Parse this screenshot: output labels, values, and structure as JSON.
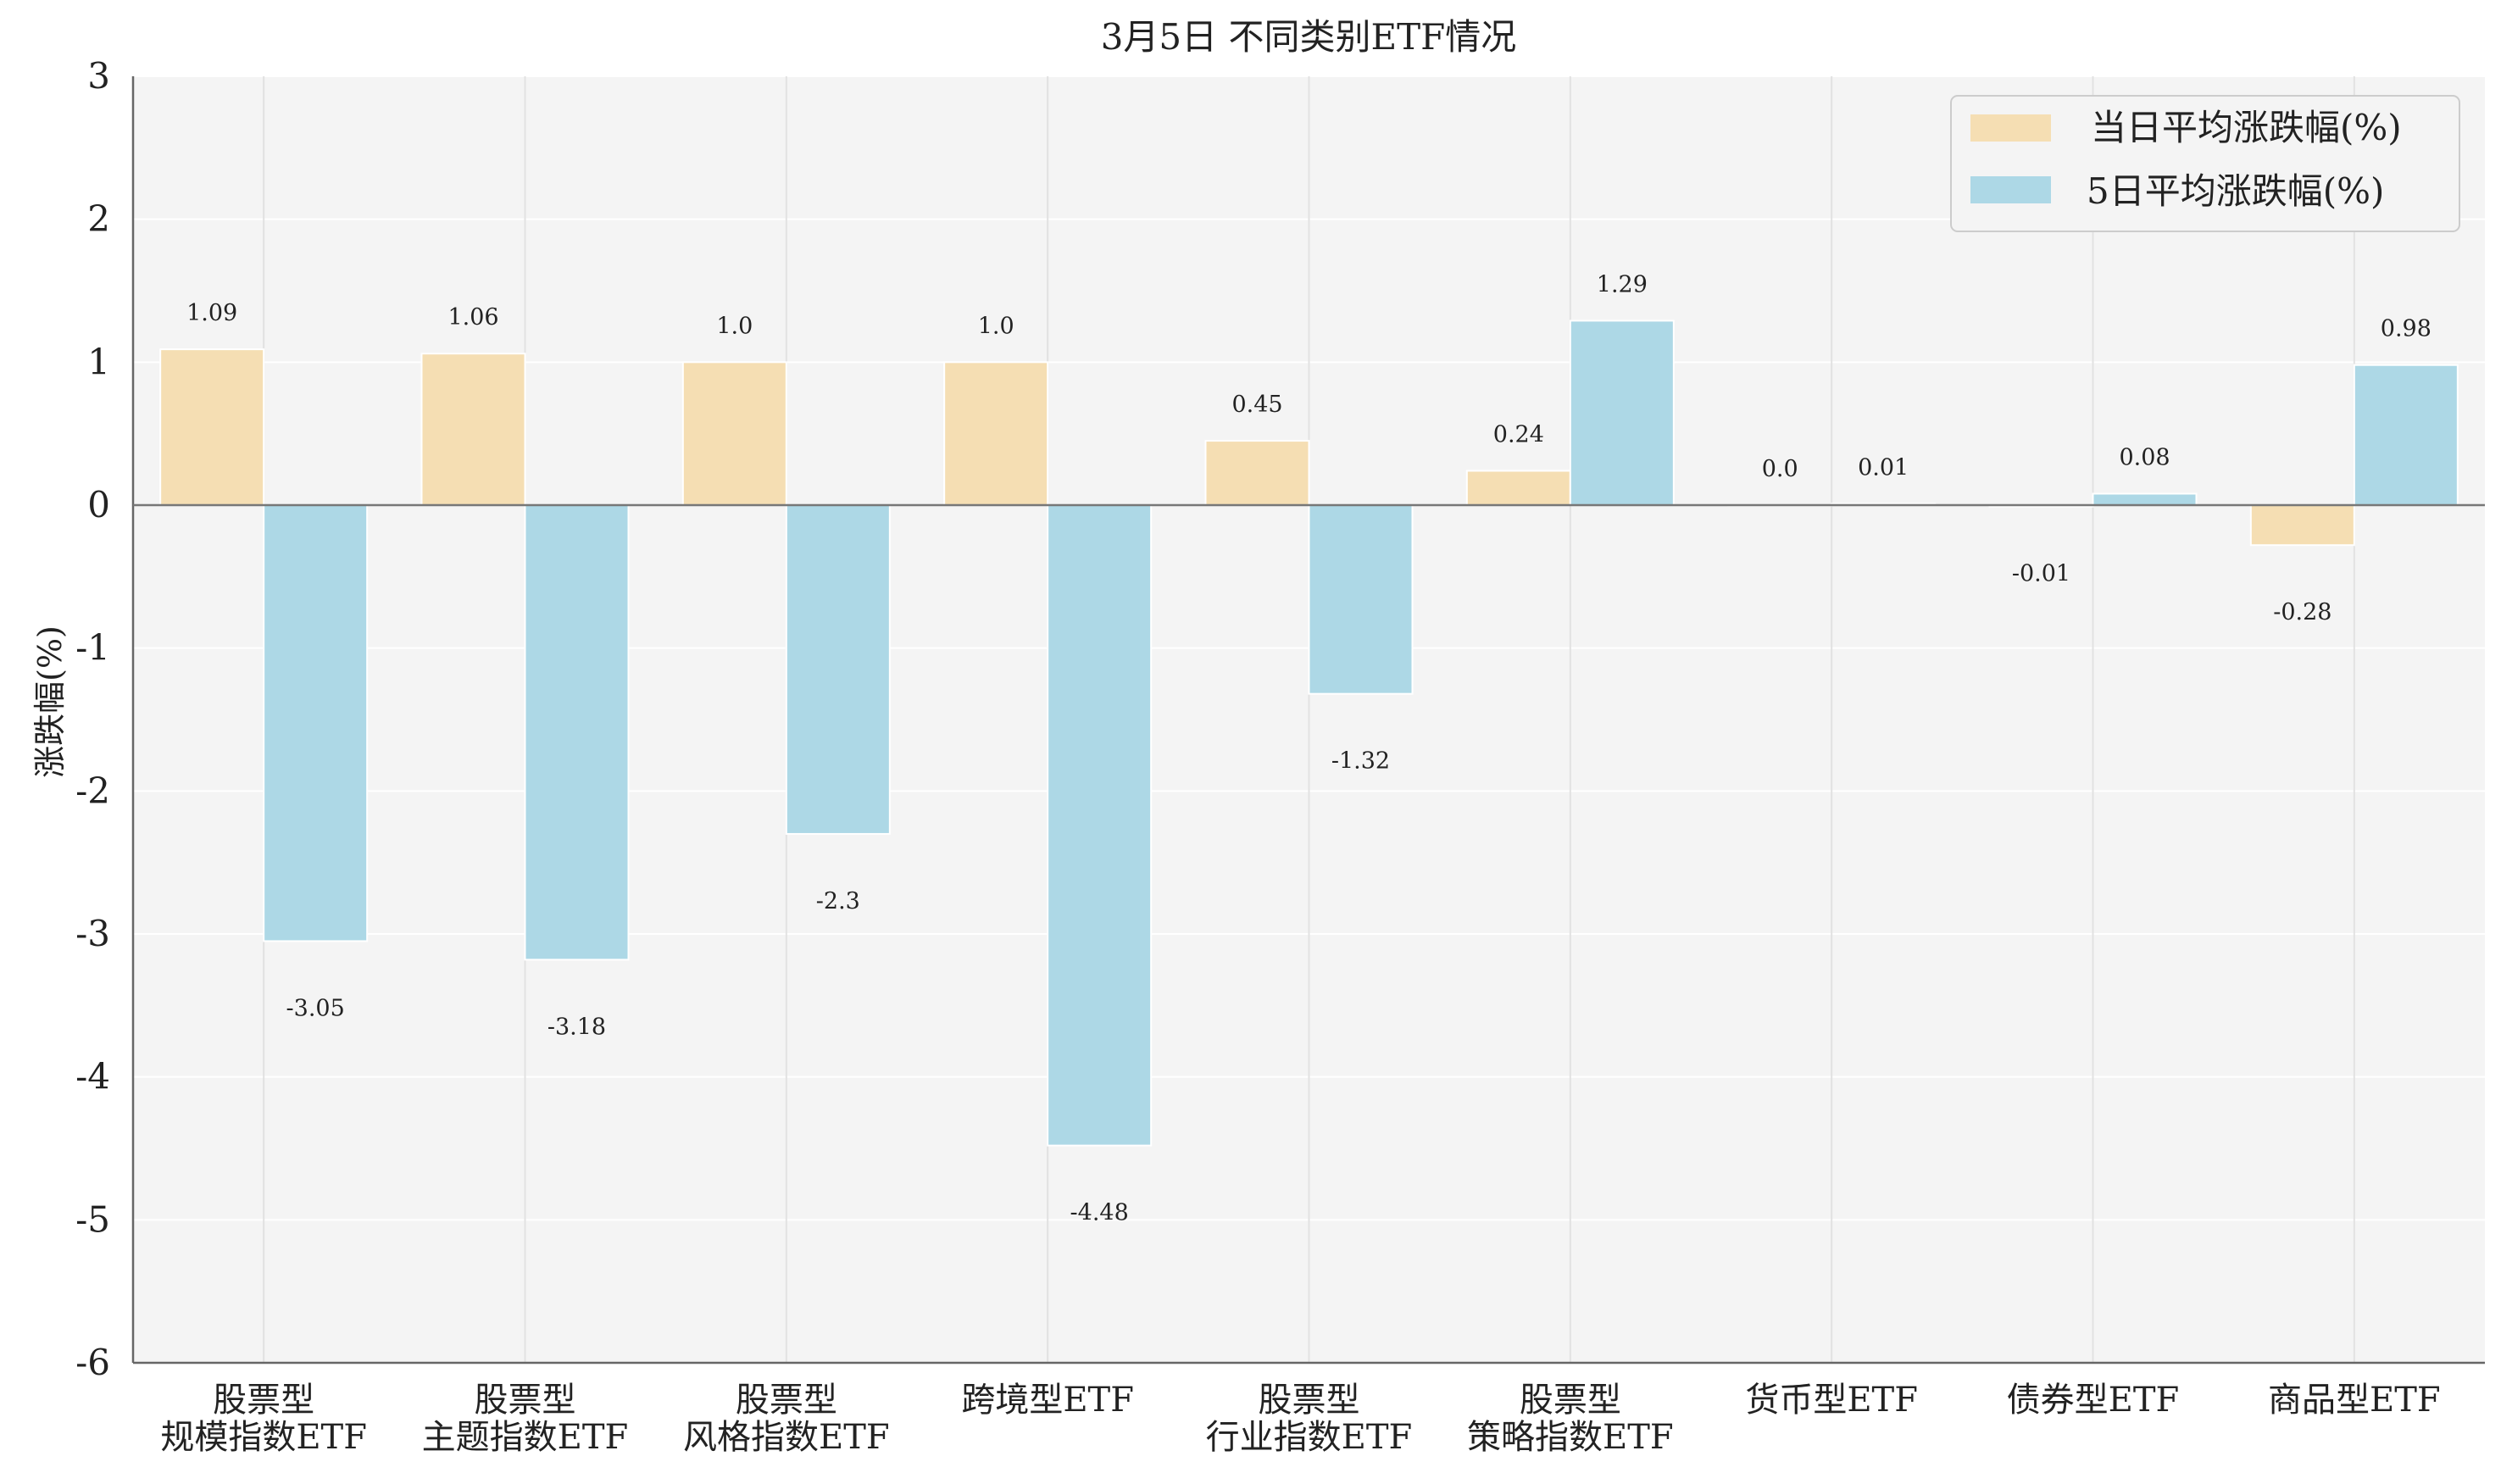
{
  "chart_data": {
    "type": "bar",
    "title": "3月5日 不同类别ETF情况",
    "xlabel": "",
    "ylabel": "涨跌幅(%)",
    "ylim": [
      -6,
      3
    ],
    "yticks": [
      3,
      2,
      1,
      0,
      -1,
      -2,
      -3,
      -4,
      -5,
      -6
    ],
    "grid": true,
    "legend_position": "top-right",
    "categories": [
      [
        "股票型",
        "规模指数ETF"
      ],
      [
        "股票型",
        "主题指数ETF"
      ],
      [
        "股票型",
        "风格指数ETF"
      ],
      [
        "跨境型ETF"
      ],
      [
        "股票型",
        "行业指数ETF"
      ],
      [
        "股票型",
        "策略指数ETF"
      ],
      [
        "货币型ETF"
      ],
      [
        "债券型ETF"
      ],
      [
        "商品型ETF"
      ]
    ],
    "series": [
      {
        "name": "当日平均涨跌幅(%)",
        "color": "#F5DEB3",
        "values": [
          1.09,
          1.06,
          1.0,
          1.0,
          0.45,
          0.24,
          0.0,
          -0.01,
          -0.28
        ],
        "labels": [
          "1.09",
          "1.06",
          "1.0",
          "1.0",
          "0.45",
          "0.24",
          "0.0",
          "-0.01",
          "-0.28"
        ]
      },
      {
        "name": "5日平均涨跌幅(%)",
        "color": "#ADD8E6",
        "values": [
          -3.05,
          -3.18,
          -2.3,
          -4.48,
          -1.32,
          1.29,
          0.01,
          0.08,
          0.98
        ],
        "labels": [
          "-3.05",
          "-3.18",
          "-2.3",
          "-4.48",
          "-1.32",
          "1.29",
          "0.01",
          "0.08",
          "0.98"
        ]
      }
    ]
  }
}
